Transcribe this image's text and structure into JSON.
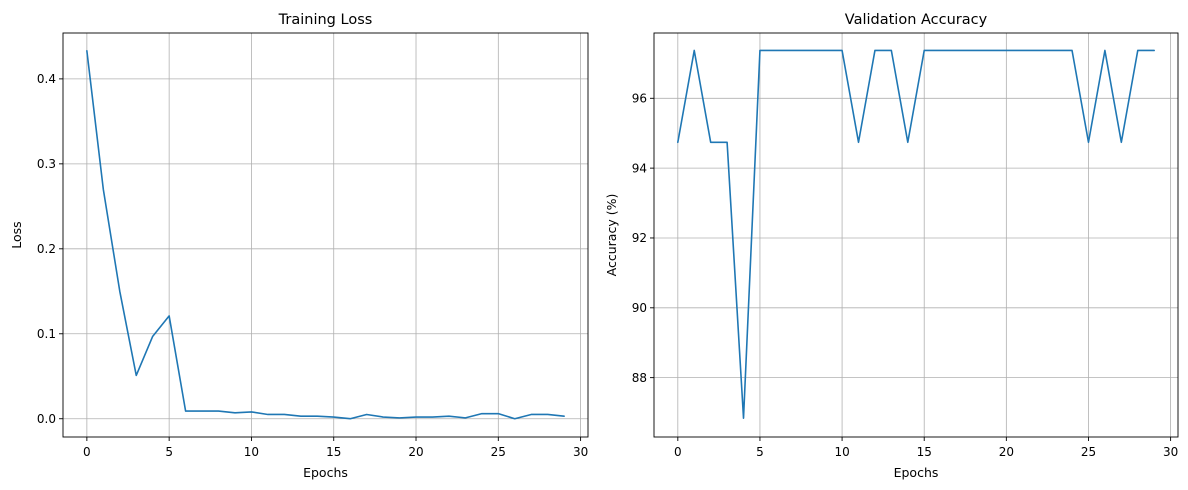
{
  "chart_data": [
    {
      "type": "line",
      "title": "Training Loss",
      "xlabel": "Epochs",
      "ylabel": "Loss",
      "xlim": [
        -1.45,
        30.45
      ],
      "ylim": [
        -0.0215,
        0.454
      ],
      "xticks": [
        0,
        5,
        10,
        15,
        20,
        25,
        30
      ],
      "yticks": [
        0.0,
        0.1,
        0.2,
        0.3,
        0.4
      ],
      "ytick_labels": [
        "0.0",
        "0.1",
        "0.2",
        "0.3",
        "0.4"
      ],
      "grid": true,
      "color": "#1f77b4",
      "series": [
        {
          "x": [
            0,
            1,
            2,
            3,
            4,
            5,
            6,
            7,
            8,
            9,
            10,
            11,
            12,
            13,
            14,
            15,
            16,
            17,
            18,
            19,
            20,
            21,
            22,
            23,
            24,
            25,
            26,
            27,
            28,
            29
          ],
          "values": [
            0.433,
            0.27,
            0.15,
            0.051,
            0.097,
            0.121,
            0.009,
            0.009,
            0.009,
            0.007,
            0.008,
            0.005,
            0.005,
            0.003,
            0.003,
            0.002,
            0.0,
            0.005,
            0.002,
            0.001,
            0.002,
            0.002,
            0.003,
            0.001,
            0.006,
            0.006,
            0.0,
            0.005,
            0.005,
            0.003
          ]
        }
      ]
    },
    {
      "type": "line",
      "title": "Validation Accuracy",
      "xlabel": "Epochs",
      "ylabel": "Accuracy (%)",
      "xlim": [
        -1.45,
        30.45
      ],
      "ylim": [
        86.3,
        97.87
      ],
      "xticks": [
        0,
        5,
        10,
        15,
        20,
        25,
        30
      ],
      "yticks": [
        88,
        90,
        92,
        94,
        96
      ],
      "ytick_labels": [
        "88",
        "90",
        "92",
        "94",
        "96"
      ],
      "grid": true,
      "color": "#1f77b4",
      "series": [
        {
          "x": [
            0,
            1,
            2,
            3,
            4,
            5,
            6,
            7,
            8,
            9,
            10,
            11,
            12,
            13,
            14,
            15,
            16,
            17,
            18,
            19,
            20,
            21,
            22,
            23,
            24,
            25,
            26,
            27,
            28,
            29
          ],
          "values": [
            94.74,
            97.37,
            94.74,
            94.74,
            86.84,
            97.37,
            97.37,
            97.37,
            97.37,
            97.37,
            97.37,
            94.74,
            97.37,
            97.37,
            94.74,
            97.37,
            97.37,
            97.37,
            97.37,
            97.37,
            97.37,
            97.37,
            97.37,
            97.37,
            97.37,
            94.74,
            97.37,
            94.74,
            97.37,
            97.37
          ]
        }
      ]
    }
  ]
}
